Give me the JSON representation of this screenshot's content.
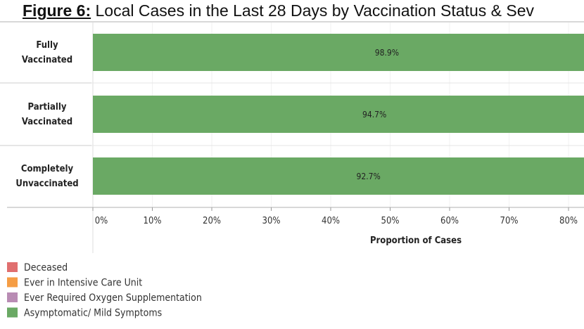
{
  "chart_data": {
    "type": "bar",
    "title_prefix": "Figure 6:",
    "title": "Local Cases in the Last 28 Days by Vaccination Status & Sev",
    "categories": [
      [
        "Fully",
        "Vaccinated"
      ],
      [
        "Partially",
        "Vaccinated"
      ],
      [
        "Completely",
        "Unvaccinated"
      ]
    ],
    "series": [
      {
        "name": "Asymptomatic/ Mild Symptoms",
        "color": "#6aa964",
        "values": [
          98.9,
          94.7,
          92.7
        ],
        "labels": [
          "98.9%",
          "94.7%",
          "92.7%"
        ]
      }
    ],
    "xlabel": "Proportion of Cases",
    "xticks": [
      "0%",
      "10%",
      "20%",
      "30%",
      "40%",
      "50%",
      "60%",
      "70%",
      "80%"
    ],
    "xlim": [
      0,
      100
    ],
    "legend": [
      {
        "label": "Deceased",
        "color": "#e06f6f"
      },
      {
        "label": "Ever in Intensive Care Unit",
        "color": "#f59d45"
      },
      {
        "label": "Ever Required Oxygen Supplementation",
        "color": "#b98cb4"
      },
      {
        "label": "Asymptomatic/ Mild Symptoms",
        "color": "#6aa964"
      }
    ],
    "legend_position": "bottom-left"
  }
}
